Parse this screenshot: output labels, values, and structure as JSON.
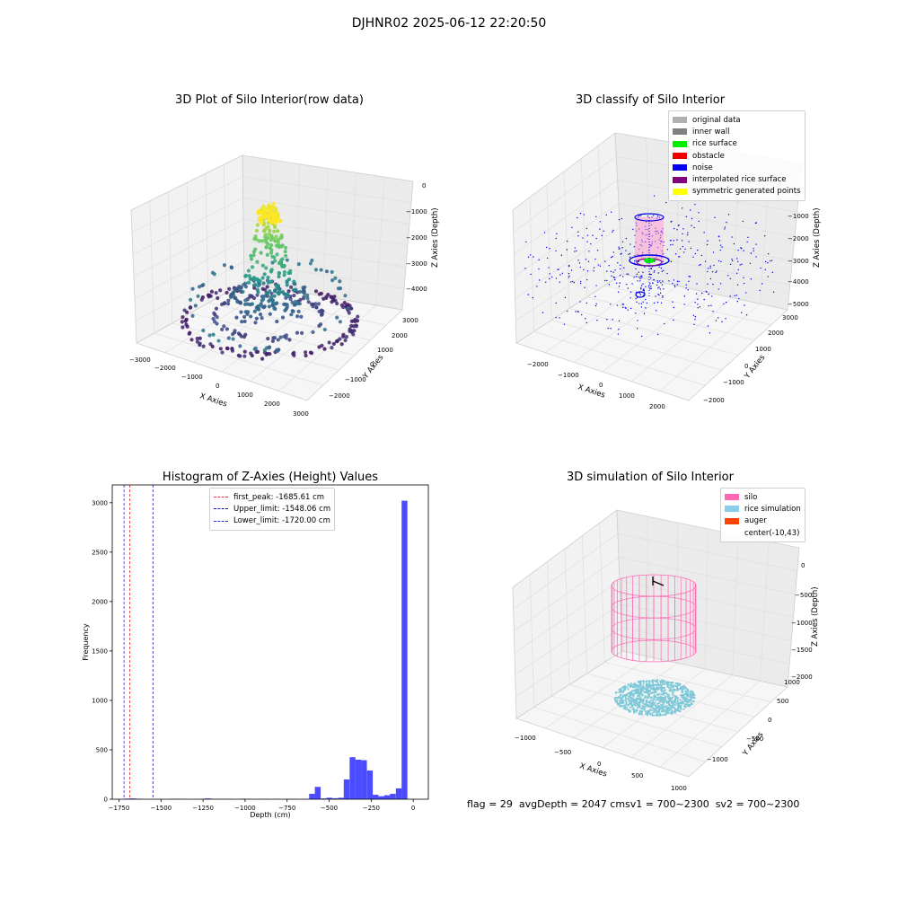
{
  "suptitle": "DJHNR02 2025-06-12 22:20:50",
  "status_line": "flag = 29  avgDepth = 2047 cmsv1 = 700~2300  sv2 = 700~2300",
  "colors": {
    "hist_bar": "#4b4bff",
    "first_peak": "#e03030",
    "upper_limit": "#1a1aa0",
    "lower_limit": "#2a2acc",
    "silo": "#ff69b4",
    "rice": "#7ec8d8",
    "noise": "#0000ee"
  },
  "chart_data": [
    {
      "type": "scatter",
      "title": "3D Plot of Silo Interior(row data)",
      "xlabel": "X Axies",
      "ylabel": "Y Axies",
      "zlabel": "Z Axies (Depth)",
      "x_ticks": [
        "−3000",
        "−2000",
        "−1000",
        "0",
        "1000",
        "2000",
        "3000"
      ],
      "y_ticks": [
        "−2000",
        "−1000",
        "0",
        "1000",
        "2000",
        "3000"
      ],
      "z_ticks": [
        "0",
        "−1000",
        "−2000",
        "−3000",
        "−4000"
      ],
      "xlim": [
        -3000,
        3000
      ],
      "ylim": [
        -2500,
        3200
      ],
      "zlim": [
        -4500,
        0
      ]
    },
    {
      "type": "scatter",
      "title": "3D classify of Silo Interior",
      "xlabel": "X Axies",
      "ylabel": "Y Axies",
      "zlabel": "Z Axies (Depth)",
      "x_ticks": [
        "−2000",
        "−1000",
        "0",
        "1000",
        "2000"
      ],
      "y_ticks": [
        "−2000",
        "−1000",
        "0",
        "1000",
        "2000",
        "3000"
      ],
      "z_ticks": [
        "0",
        "−1000",
        "−2000",
        "−3000",
        "−4000",
        "−5000"
      ],
      "legend": [
        {
          "label": "original data",
          "color": "#b0b0b0"
        },
        {
          "label": "inner wall",
          "color": "#808080"
        },
        {
          "label": "rice surface",
          "color": "#00ee00"
        },
        {
          "label": "obstacle",
          "color": "#ee0000"
        },
        {
          "label": "noise",
          "color": "#0000ee"
        },
        {
          "label": "interpolated rice surface",
          "color": "#800080"
        },
        {
          "label": "symmetric generated points",
          "color": "#ffff00"
        }
      ]
    },
    {
      "type": "bar",
      "title": "Histogram of Z-Axies (Height) Values",
      "xlabel": "Depth (cm)",
      "ylabel": "Frequency",
      "xlim": [
        -1790,
        90
      ],
      "ylim": [
        0,
        3180
      ],
      "x_ticks": [
        -1750,
        -1500,
        -1250,
        -1000,
        -750,
        -500,
        -250,
        0
      ],
      "x_tick_labels": [
        "−1750",
        "−1500",
        "−1250",
        "−1000",
        "−750",
        "−500",
        "−250",
        "0"
      ],
      "y_ticks": [
        0,
        500,
        1000,
        1500,
        2000,
        2500,
        3000
      ],
      "y_tick_labels": [
        "0",
        "500",
        "1000",
        "1500",
        "2000",
        "2500",
        "3000"
      ],
      "bin_width": 34.4,
      "bins": [
        {
          "x": -1720,
          "v": 6
        },
        {
          "x": -1685.6,
          "v": 8
        },
        {
          "x": -1651.2,
          "v": 5
        },
        {
          "x": -1548,
          "v": 3
        },
        {
          "x": -1445,
          "v": 4
        },
        {
          "x": -1410,
          "v": 3
        },
        {
          "x": -1376,
          "v": 3
        },
        {
          "x": -1273,
          "v": 3
        },
        {
          "x": -1238,
          "v": 8
        },
        {
          "x": -1204,
          "v": 4
        },
        {
          "x": -1170,
          "v": 3
        },
        {
          "x": -1135,
          "v": 3
        },
        {
          "x": -1101,
          "v": 3
        },
        {
          "x": -1032,
          "v": 5
        },
        {
          "x": -998,
          "v": 4
        },
        {
          "x": -929,
          "v": 3
        },
        {
          "x": -894,
          "v": 3
        },
        {
          "x": -826,
          "v": 4
        },
        {
          "x": -757,
          "v": 3
        },
        {
          "x": -722,
          "v": 3
        },
        {
          "x": -654,
          "v": 3
        },
        {
          "x": -619,
          "v": 55
        },
        {
          "x": -585,
          "v": 125
        },
        {
          "x": -550,
          "v": 8
        },
        {
          "x": -516,
          "v": 15
        },
        {
          "x": -482,
          "v": 10
        },
        {
          "x": -447,
          "v": 15
        },
        {
          "x": -413,
          "v": 200
        },
        {
          "x": -378,
          "v": 425
        },
        {
          "x": -344,
          "v": 400
        },
        {
          "x": -310,
          "v": 395
        },
        {
          "x": -275,
          "v": 290
        },
        {
          "x": -241,
          "v": 45
        },
        {
          "x": -206,
          "v": 30
        },
        {
          "x": -172,
          "v": 40
        },
        {
          "x": -138,
          "v": 55
        },
        {
          "x": -103,
          "v": 110
        },
        {
          "x": -69,
          "v": 3020
        }
      ],
      "vlines": [
        {
          "label": "first_peak: -1685.61 cm",
          "x": -1685.61,
          "color": "#e03030"
        },
        {
          "label": "Upper_limit: -1548.06 cm",
          "x": -1548.06,
          "color": "#1a1aa0"
        },
        {
          "label": "Lower_limit: -1720.00 cm",
          "x": -1720.0,
          "color": "#2a2acc"
        }
      ]
    },
    {
      "type": "scatter",
      "title": "3D simulation of Silo Interior",
      "xlabel": "X Axies",
      "ylabel": "Y Axies",
      "zlabel": "Z Axies (Depth)",
      "x_ticks": [
        "−1000",
        "−500",
        "0",
        "500",
        "1000"
      ],
      "y_ticks": [
        "−1000",
        "−500",
        "0",
        "500",
        "1000"
      ],
      "z_ticks": [
        "0",
        "−500",
        "−1000",
        "−1500",
        "−2000"
      ],
      "legend": [
        {
          "label": "silo",
          "color": "#ff69b4"
        },
        {
          "label": "rice simulation",
          "color": "#87ceeb"
        },
        {
          "label": "auger",
          "color": "#ff4500"
        },
        {
          "label": "center(-10,43)",
          "color": "#ffffff"
        }
      ]
    }
  ]
}
